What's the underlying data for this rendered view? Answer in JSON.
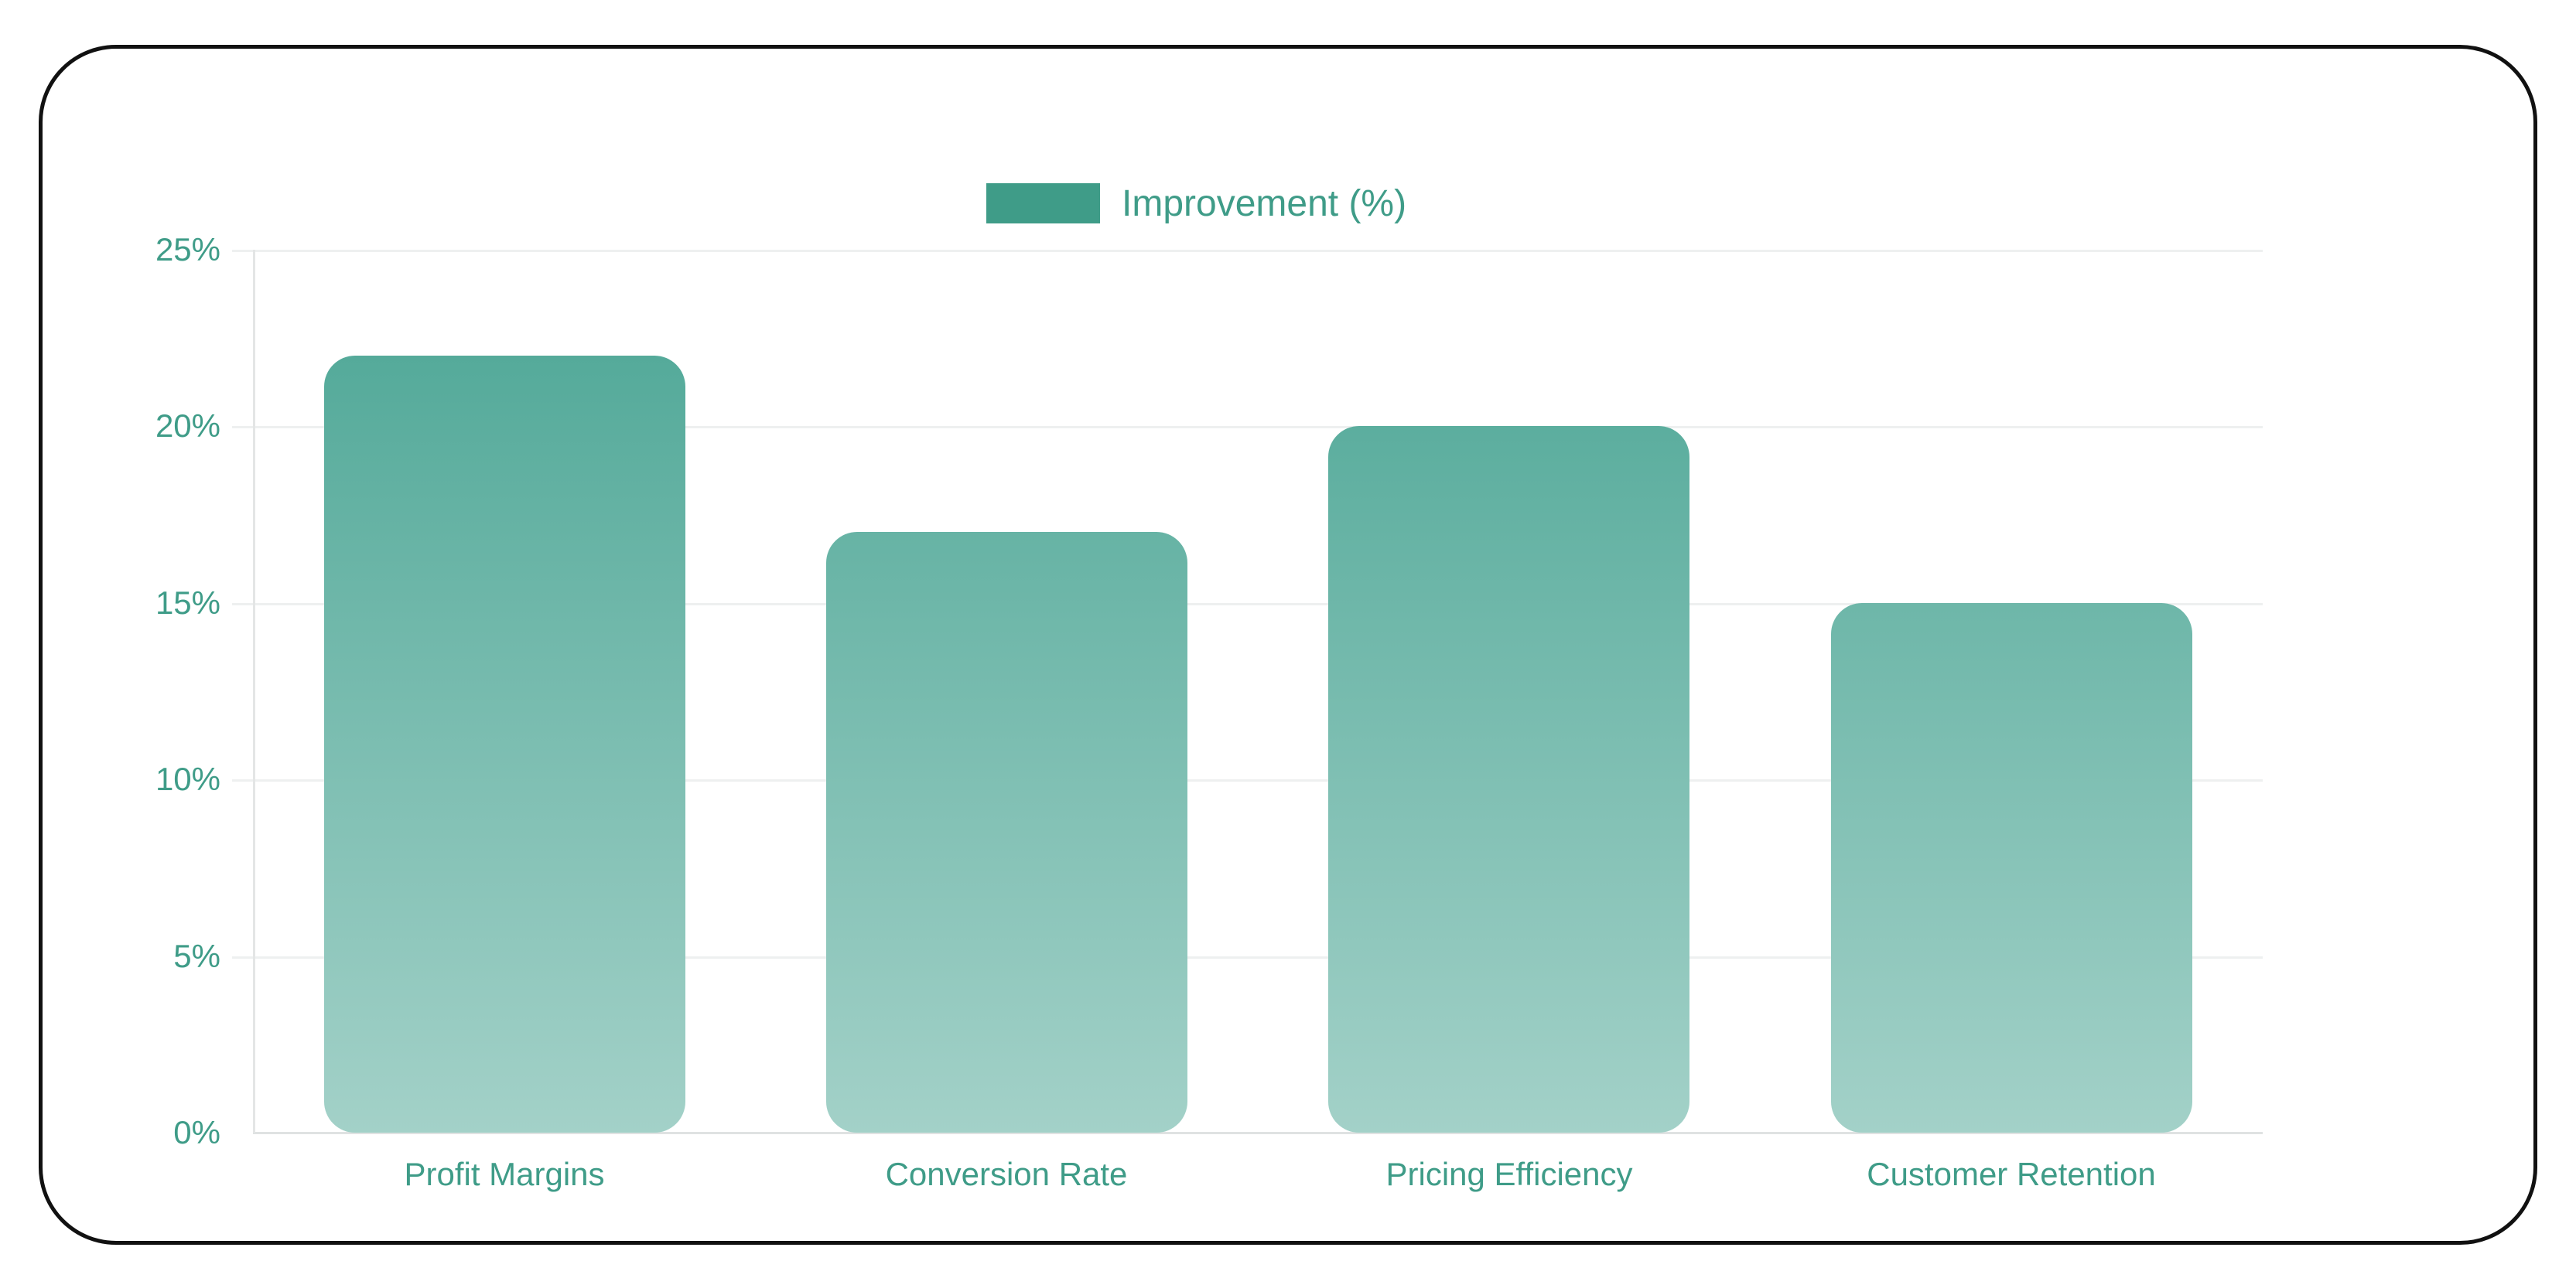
{
  "chart_data": {
    "type": "bar",
    "title": "",
    "xlabel": "",
    "ylabel": "",
    "legend": [
      {
        "label": "Improvement (%)",
        "color": "#3f9c88"
      }
    ],
    "legend_position": "top",
    "categories": [
      "Profit Margins",
      "Conversion Rate",
      "Pricing Efficiency",
      "Customer Retention"
    ],
    "series": [
      {
        "name": "Improvement (%)",
        "values": [
          22,
          17,
          20,
          15
        ]
      }
    ],
    "ylim": [
      0,
      25
    ],
    "yticks": [
      "0%",
      "5%",
      "10%",
      "15%",
      "20%",
      "25%"
    ],
    "grid": true
  },
  "legend": {
    "label": "Improvement (%)"
  },
  "yaxis": {
    "ticks": [
      "0%",
      "5%",
      "10%",
      "15%",
      "20%",
      "25%"
    ]
  },
  "xaxis": {
    "labels": [
      "Profit Margins",
      "Conversion Rate",
      "Pricing Efficiency",
      "Customer Retention"
    ]
  },
  "colors": {
    "accent": "#3f9c88",
    "bar_top": "#4aa594",
    "bar_bottom": "#a3d1c8"
  }
}
